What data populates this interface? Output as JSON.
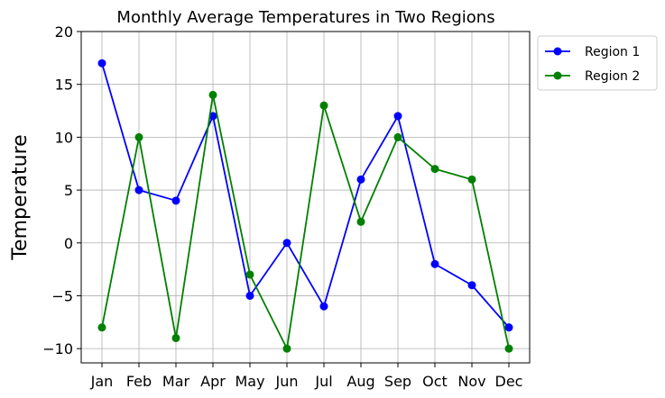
{
  "chart_data": {
    "type": "line",
    "title": "Monthly Average Temperatures in Two Regions",
    "xlabel": "",
    "ylabel": "Temperature",
    "categories": [
      "Jan",
      "Feb",
      "Mar",
      "Apr",
      "May",
      "Jun",
      "Jul",
      "Aug",
      "Sep",
      "Oct",
      "Nov",
      "Dec"
    ],
    "series": [
      {
        "name": "Region 1",
        "color": "#0000ff",
        "values": [
          17,
          5,
          4,
          12,
          -5,
          0,
          -6,
          6,
          12,
          -2,
          -4,
          -8
        ]
      },
      {
        "name": "Region 2",
        "color": "#008000",
        "values": [
          -8,
          10,
          -9,
          14,
          -3,
          -10,
          13,
          2,
          10,
          7,
          6,
          -10
        ]
      }
    ],
    "yticks": [
      -10,
      -5,
      0,
      5,
      10,
      15,
      20
    ],
    "ytick_labels": [
      "−10",
      "−5",
      "0",
      "5",
      "10",
      "15",
      "20"
    ],
    "ylim": [
      -11.35,
      20
    ],
    "grid": true,
    "legend_position": "outside-top-right"
  }
}
